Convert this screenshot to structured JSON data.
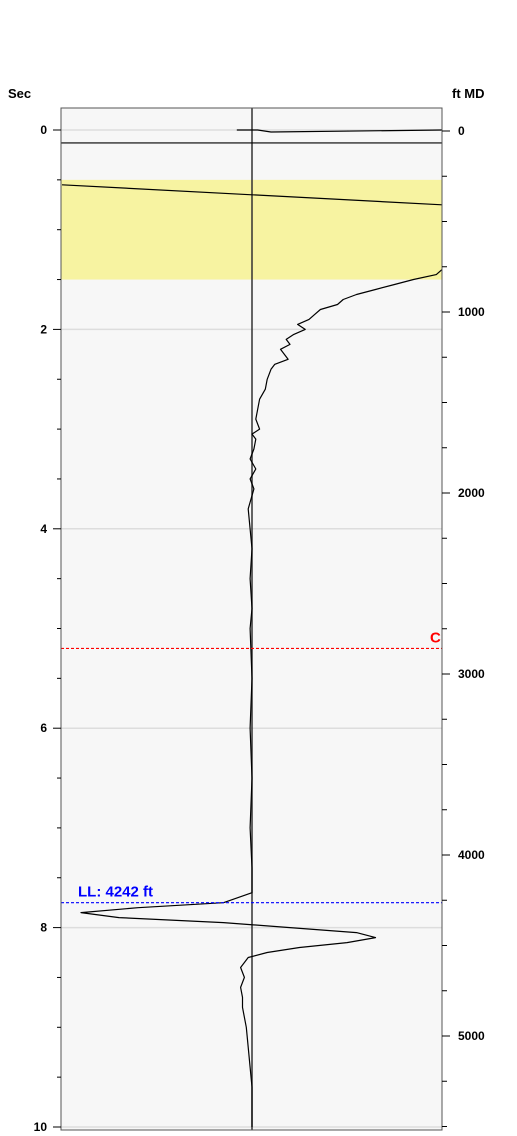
{
  "chart_data": {
    "type": "line",
    "title": "",
    "left_axis": {
      "label": "Sec",
      "range": [
        0,
        10
      ],
      "ticks": [
        0,
        2,
        4,
        6,
        8,
        10
      ],
      "tick_labels": [
        "0",
        "2",
        "4",
        "6",
        "8",
        "10"
      ],
      "minor_step": 0.5,
      "grid": true
    },
    "right_axis": {
      "label": "ft MD",
      "range": [
        0,
        5500
      ],
      "ticks": [
        0,
        1000,
        2000,
        3000,
        4000,
        5000
      ],
      "tick_labels": [
        "0",
        "1000",
        "2000",
        "3000",
        "4000",
        "5000"
      ],
      "minor_step": 250
    },
    "highlight_band": {
      "from": 0.5,
      "to": 1.5,
      "color": "#f7f3a1"
    },
    "markers": [
      {
        "name": "C",
        "label": "C",
        "at": 5.2,
        "color": "#ff0000",
        "style": "dashed"
      },
      {
        "name": "LL",
        "label": "LL: 4242 ft",
        "at": 7.75,
        "color": "#0000ff",
        "style": "dashed"
      }
    ],
    "reference_lines": [
      {
        "at": 0.13,
        "color": "#000000"
      }
    ],
    "series": [
      {
        "color": "#000000",
        "points": [
          {
            "t": 0.55,
            "a": -1.0
          },
          {
            "t": 0.65,
            "a": 0.0
          },
          {
            "t": 0.75,
            "a": 1.0
          }
        ]
      },
      {
        "color": "#000000",
        "points": [
          {
            "t": 0.0,
            "a": -0.08
          },
          {
            "t": 0.0,
            "a": 0.03
          },
          {
            "t": 0.02,
            "a": 0.1
          },
          {
            "t": 0.0,
            "a": 1.0
          }
        ]
      },
      {
        "color": "#000000",
        "points": [
          {
            "t": 1.4,
            "a": 1.0
          },
          {
            "t": 1.45,
            "a": 0.97
          },
          {
            "t": 1.5,
            "a": 0.85
          },
          {
            "t": 1.55,
            "a": 0.75
          },
          {
            "t": 1.6,
            "a": 0.65
          },
          {
            "t": 1.65,
            "a": 0.55
          },
          {
            "t": 1.7,
            "a": 0.48
          },
          {
            "t": 1.75,
            "a": 0.45
          },
          {
            "t": 1.8,
            "a": 0.36
          },
          {
            "t": 1.85,
            "a": 0.33
          },
          {
            "t": 1.9,
            "a": 0.3
          },
          {
            "t": 1.95,
            "a": 0.24
          },
          {
            "t": 2.0,
            "a": 0.28
          },
          {
            "t": 2.05,
            "a": 0.22
          },
          {
            "t": 2.1,
            "a": 0.18
          },
          {
            "t": 2.15,
            "a": 0.2
          },
          {
            "t": 2.2,
            "a": 0.15
          },
          {
            "t": 2.3,
            "a": 0.19
          },
          {
            "t": 2.35,
            "a": 0.12
          },
          {
            "t": 2.4,
            "a": 0.1
          },
          {
            "t": 2.5,
            "a": 0.08
          },
          {
            "t": 2.6,
            "a": 0.07
          },
          {
            "t": 2.7,
            "a": 0.04
          },
          {
            "t": 2.8,
            "a": 0.03
          },
          {
            "t": 2.9,
            "a": 0.02
          },
          {
            "t": 3.0,
            "a": 0.04
          },
          {
            "t": 3.05,
            "a": 0.0
          },
          {
            "t": 3.1,
            "a": 0.02
          },
          {
            "t": 3.2,
            "a": 0.01
          },
          {
            "t": 3.3,
            "a": -0.01
          },
          {
            "t": 3.4,
            "a": 0.02
          },
          {
            "t": 3.5,
            "a": -0.01
          },
          {
            "t": 3.6,
            "a": 0.01
          },
          {
            "t": 3.8,
            "a": -0.02
          },
          {
            "t": 4.0,
            "a": -0.01
          },
          {
            "t": 4.2,
            "a": 0.0
          },
          {
            "t": 4.5,
            "a": -0.01
          },
          {
            "t": 4.8,
            "a": 0.0
          },
          {
            "t": 5.0,
            "a": -0.01
          },
          {
            "t": 5.5,
            "a": 0.0
          },
          {
            "t": 6.0,
            "a": -0.01
          },
          {
            "t": 6.5,
            "a": 0.0
          },
          {
            "t": 7.0,
            "a": -0.01
          },
          {
            "t": 7.4,
            "a": 0.0
          },
          {
            "t": 7.65,
            "a": 0.0
          },
          {
            "t": 7.75,
            "a": -0.15
          },
          {
            "t": 7.8,
            "a": -0.6
          },
          {
            "t": 7.85,
            "a": -0.9
          },
          {
            "t": 7.9,
            "a": -0.7
          },
          {
            "t": 7.95,
            "a": -0.15
          },
          {
            "t": 8.0,
            "a": 0.2
          },
          {
            "t": 8.05,
            "a": 0.55
          },
          {
            "t": 8.1,
            "a": 0.65
          },
          {
            "t": 8.15,
            "a": 0.5
          },
          {
            "t": 8.2,
            "a": 0.25
          },
          {
            "t": 8.25,
            "a": 0.08
          },
          {
            "t": 8.3,
            "a": -0.02
          },
          {
            "t": 8.4,
            "a": -0.06
          },
          {
            "t": 8.5,
            "a": -0.04
          },
          {
            "t": 8.6,
            "a": -0.06
          },
          {
            "t": 8.7,
            "a": -0.05
          },
          {
            "t": 8.8,
            "a": -0.05
          },
          {
            "t": 9.0,
            "a": -0.03
          },
          {
            "t": 9.2,
            "a": -0.02
          },
          {
            "t": 9.4,
            "a": -0.01
          },
          {
            "t": 9.6,
            "a": 0.0
          },
          {
            "t": 10.0,
            "a": 0.0
          }
        ]
      }
    ]
  }
}
